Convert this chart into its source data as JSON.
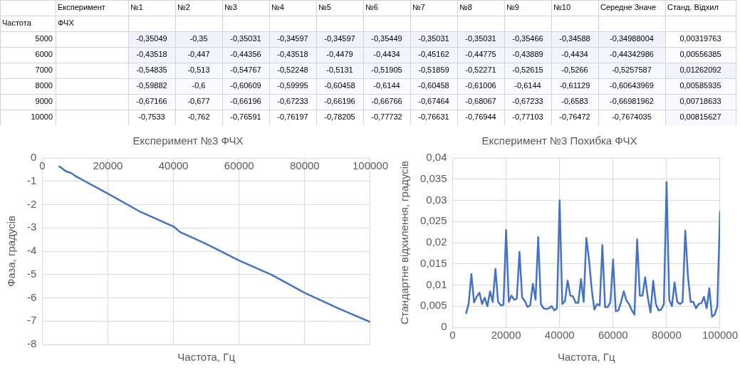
{
  "chart_data": [
    {
      "type": "heatmap",
      "ylabel": "Частота",
      "annotations": [
        "ФЧХ"
      ],
      "categories": [
        "Експеримент",
        "№1",
        "№2",
        "№3",
        "№4",
        "№5",
        "№6",
        "№7",
        "№8",
        "№9",
        "№10",
        "Середне Значе",
        "Станд. Відхил"
      ],
      "y_categories": [
        "5000",
        "6000",
        "7000",
        "8000",
        "9000",
        "10000"
      ],
      "cells": [
        [
          null,
          -0.35049,
          -0.35,
          -0.35031,
          -0.34597,
          -0.34597,
          -0.35449,
          -0.35031,
          -0.35031,
          -0.35466,
          -0.34588,
          -0.34988004,
          0.00319763
        ],
        [
          null,
          -0.43518,
          -0.447,
          -0.44356,
          -0.43518,
          -0.4479,
          -0.4434,
          -0.45162,
          -0.44775,
          -0.43889,
          -0.4434,
          -0.44342986,
          0.00556385
        ],
        [
          null,
          -0.54835,
          -0.513,
          -0.54767,
          -0.52248,
          -0.5131,
          -0.51905,
          -0.51859,
          -0.52271,
          -0.52615,
          -0.5266,
          -0.5257587,
          0.01262092
        ],
        [
          null,
          -0.59882,
          -0.6,
          -0.60609,
          -0.59995,
          -0.60458,
          -0.6144,
          -0.60458,
          -0.61006,
          -0.6144,
          -0.61129,
          -0.60643969,
          0.00585935
        ],
        [
          null,
          -0.67166,
          -0.677,
          -0.66196,
          -0.67233,
          -0.66196,
          -0.66766,
          -0.67464,
          -0.68067,
          -0.67233,
          -0.6583,
          -0.66981962,
          0.00718633
        ],
        [
          null,
          -0.7533,
          -0.762,
          -0.76591,
          -0.76197,
          -0.78205,
          -0.77732,
          -0.76631,
          -0.76944,
          -0.77103,
          -0.76472,
          -0.7674035,
          0.00815627
        ]
      ],
      "cell_labels": [
        [
          null,
          "-0,35049",
          "-0,35",
          "-0,35031",
          "-0,34597",
          "-0,34597",
          "-0,35449",
          "-0,35031",
          "-0,35031",
          "-0,35466",
          "-0,34588",
          "-0,34988004",
          "0,00319763"
        ],
        [
          null,
          "-0,43518",
          "-0,447",
          "-0,44356",
          "-0,43518",
          "-0,4479",
          "-0,4434",
          "-0,45162",
          "-0,44775",
          "-0,43889",
          "-0,4434",
          "-0,44342986",
          "0,00556385"
        ],
        [
          null,
          "-0,54835",
          "-0,513",
          "-0,54767",
          "-0,52248",
          "-0,5131",
          "-0,51905",
          "-0,51859",
          "-0,52271",
          "-0,52615",
          "-0,5266",
          "-0,5257587",
          "0,01262092"
        ],
        [
          null,
          "-0,59882",
          "-0,6",
          "-0,60609",
          "-0,59995",
          "-0,60458",
          "-0,6144",
          "-0,60458",
          "-0,61006",
          "-0,6144",
          "-0,61129",
          "-0,60643969",
          "0,00585935"
        ],
        [
          null,
          "-0,67166",
          "-0,677",
          "-0,66196",
          "-0,67233",
          "-0,66196",
          "-0,66766",
          "-0,67464",
          "-0,68067",
          "-0,67233",
          "-0,6583",
          "-0,66981962",
          "0,00718633"
        ],
        [
          null,
          "-0,7533",
          "-0,762",
          "-0,76591",
          "-0,76197",
          "-0,78205",
          "-0,77732",
          "-0,76631",
          "-0,76944",
          "-0,77103",
          "-0,76472",
          "-0,7674035",
          "0,00815627"
        ]
      ]
    },
    {
      "type": "line",
      "title": "Експеримент №3 ФЧХ",
      "xlabel": "Частота, Гц",
      "ylabel": "Фаза, градусів",
      "grid": true,
      "marker": "none",
      "legend": false,
      "xlim": [
        0,
        100000
      ],
      "xticks": [
        0,
        20000,
        40000,
        60000,
        80000,
        100000
      ],
      "ylim": [
        -8,
        0
      ],
      "yticks": [
        -8,
        -7,
        -6,
        -5,
        -4,
        -3,
        -2,
        -1,
        0
      ],
      "series": [
        {
          "color": "#4472c4",
          "x": [
            5000,
            6000,
            7000,
            8000,
            9000,
            10000,
            20000,
            30000,
            40000,
            42000,
            50000,
            60000,
            70000,
            80000,
            90000,
            100000
          ],
          "values": [
            -0.35,
            -0.44,
            -0.55,
            -0.61,
            -0.66,
            -0.77,
            -1.53,
            -2.32,
            -2.94,
            -3.18,
            -3.69,
            -4.4,
            -5.02,
            -5.79,
            -6.44,
            -7.04
          ]
        }
      ]
    },
    {
      "type": "line",
      "title": "Експеримент №3 Похибка ФЧХ",
      "xlabel": "Частота, Гц",
      "ylabel": "Стандартне відхилення, градусів",
      "grid": true,
      "marker": "none",
      "legend": false,
      "xlim": [
        0,
        100000
      ],
      "xticks": [
        0,
        20000,
        40000,
        60000,
        80000,
        100000
      ],
      "ylim": [
        0,
        0.04
      ],
      "yticks": [
        0,
        {
          "value": 0.005,
          "label": "0,005"
        },
        {
          "value": 0.01,
          "label": "0,01"
        },
        {
          "value": 0.015,
          "label": "0,015"
        },
        {
          "value": 0.02,
          "label": "0,02"
        },
        {
          "value": 0.025,
          "label": "0,025"
        },
        {
          "value": 0.03,
          "label": "0,03"
        },
        {
          "value": 0.035,
          "label": "0,035"
        },
        {
          "value": 0.04,
          "label": "0,04"
        }
      ],
      "series": [
        {
          "color": "#4472c4",
          "x": [
            5000,
            6000,
            7000,
            8000,
            9000,
            10000,
            11000,
            12000,
            13000,
            14000,
            15000,
            16000,
            17000,
            18000,
            19000,
            20000,
            21000,
            22000,
            23000,
            24000,
            25000,
            26000,
            27000,
            28000,
            29000,
            30000,
            31000,
            32000,
            33000,
            34000,
            35000,
            36000,
            37000,
            38000,
            39000,
            40000,
            41000,
            42000,
            43000,
            44000,
            45000,
            46000,
            47000,
            48000,
            49000,
            50000,
            51000,
            52000,
            53000,
            54000,
            55000,
            56000,
            57000,
            58000,
            59000,
            60000,
            61000,
            62000,
            63000,
            64000,
            65000,
            66000,
            67000,
            68000,
            69000,
            70000,
            71000,
            72000,
            73000,
            74000,
            75000,
            76000,
            77000,
            78000,
            79000,
            80000,
            81000,
            82000,
            83000,
            84000,
            85000,
            86000,
            87000,
            88000,
            89000,
            90000,
            91000,
            92000,
            93000,
            94000,
            95000,
            96000,
            97000,
            98000,
            99000,
            100000
          ],
          "values": [
            0.0032,
            0.0056,
            0.0126,
            0.0059,
            0.0072,
            0.0082,
            0.0055,
            0.007,
            0.005,
            0.0085,
            0.006,
            0.0138,
            0.006,
            0.0052,
            0.0053,
            0.023,
            0.006,
            0.0075,
            0.0065,
            0.0068,
            0.0178,
            0.007,
            0.0062,
            0.0048,
            0.0052,
            0.0103,
            0.0065,
            0.0213,
            0.0055,
            0.0045,
            0.0043,
            0.0045,
            0.005,
            0.004,
            0.0045,
            0.03,
            0.0055,
            0.0062,
            0.011,
            0.0075,
            0.0073,
            0.0058,
            0.0058,
            0.0114,
            0.006,
            0.0211,
            0.016,
            0.009,
            0.0042,
            0.0055,
            0.0052,
            0.0194,
            0.0048,
            0.0048,
            0.006,
            0.016,
            0.0038,
            0.004,
            0.006,
            0.0085,
            0.0063,
            0.0055,
            0.004,
            0.003,
            0.0208,
            0.0075,
            0.0075,
            0.0118,
            0.007,
            0.0035,
            0.011,
            0.0055,
            0.004,
            0.0042,
            0.0055,
            0.0343,
            0.0065,
            0.005,
            0.0106,
            0.006,
            0.0055,
            0.006,
            0.0228,
            0.012,
            0.006,
            0.006,
            0.0045,
            0.0055,
            0.0057,
            0.0072,
            0.0045,
            0.0092,
            0.0025,
            0.003,
            0.005,
            0.0275
          ]
        }
      ]
    }
  ]
}
